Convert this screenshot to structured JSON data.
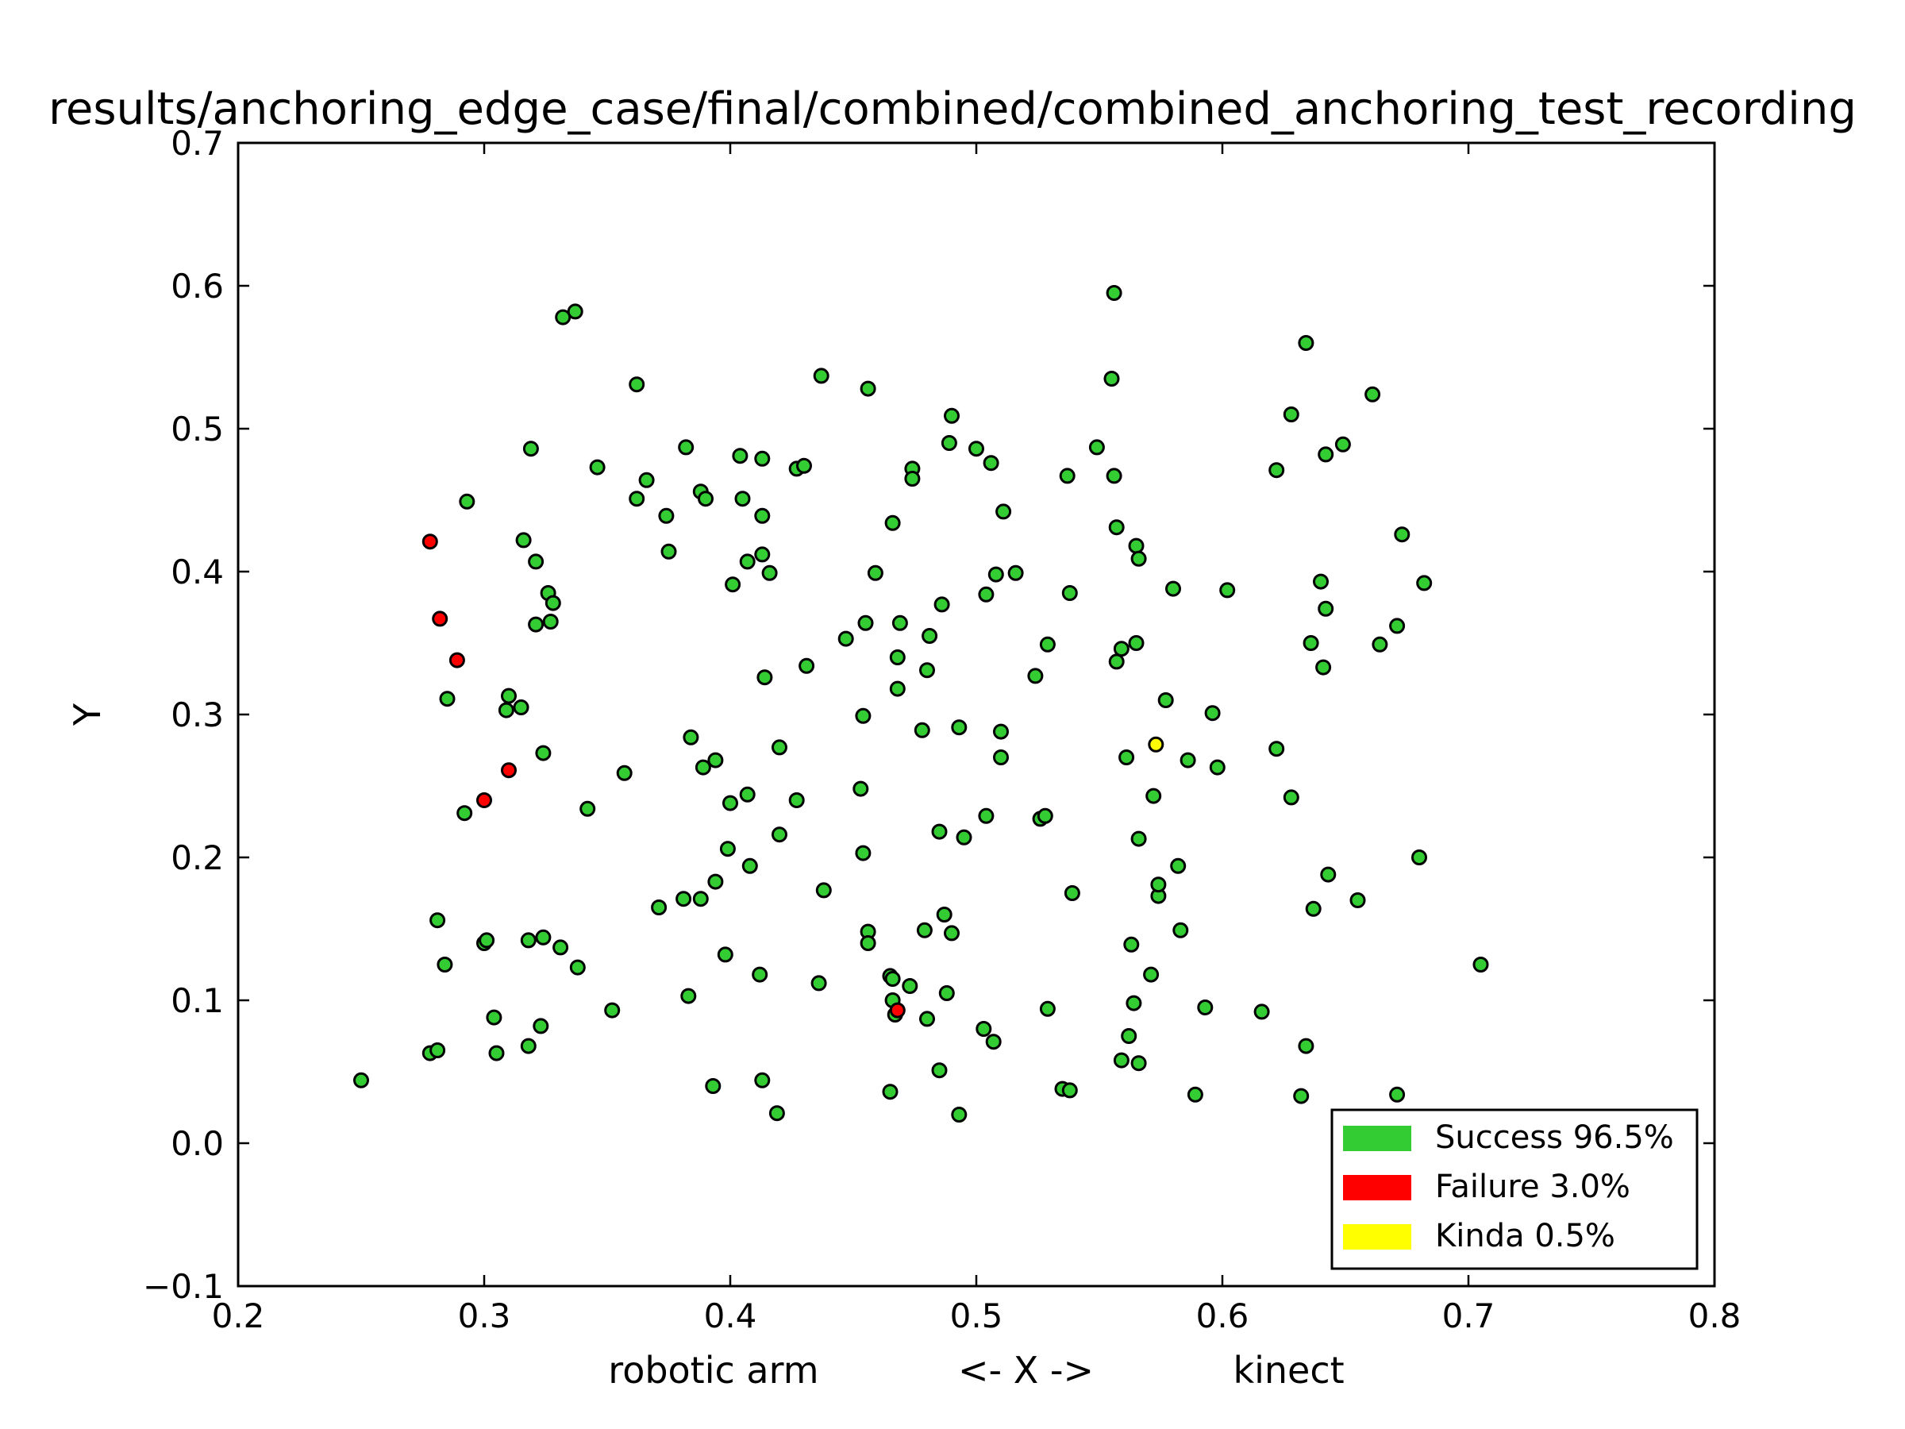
{
  "chart_data": {
    "type": "scatter",
    "title": "results/anchoring_edge_case/final/combined/combined_anchoring_test_recording",
    "xlabel": "robotic arm            <- X ->            kinect",
    "ylabel": "Y",
    "xlim": [
      0.2,
      0.8
    ],
    "ylim": [
      -0.1,
      0.7
    ],
    "x_ticks": [
      "0.2",
      "0.3",
      "0.4",
      "0.5",
      "0.6",
      "0.7",
      "0.8"
    ],
    "y_ticks": [
      "−0.1",
      "0.0",
      "0.1",
      "0.2",
      "0.3",
      "0.4",
      "0.5",
      "0.6",
      "0.7"
    ],
    "grid": false,
    "legend_position": "lower-right",
    "series": [
      {
        "name": "Success 96.5%",
        "color": "#33cc33",
        "points": [
          [
            0.25,
            0.044
          ],
          [
            0.278,
            0.063
          ],
          [
            0.281,
            0.065
          ],
          [
            0.284,
            0.125
          ],
          [
            0.281,
            0.156
          ],
          [
            0.285,
            0.311
          ],
          [
            0.292,
            0.231
          ],
          [
            0.293,
            0.449
          ],
          [
            0.3,
            0.14
          ],
          [
            0.301,
            0.142
          ],
          [
            0.304,
            0.088
          ],
          [
            0.305,
            0.063
          ],
          [
            0.309,
            0.303
          ],
          [
            0.31,
            0.313
          ],
          [
            0.315,
            0.305
          ],
          [
            0.316,
            0.422
          ],
          [
            0.318,
            0.068
          ],
          [
            0.318,
            0.142
          ],
          [
            0.319,
            0.486
          ],
          [
            0.321,
            0.363
          ],
          [
            0.321,
            0.407
          ],
          [
            0.323,
            0.082
          ],
          [
            0.324,
            0.273
          ],
          [
            0.324,
            0.144
          ],
          [
            0.326,
            0.385
          ],
          [
            0.327,
            0.365
          ],
          [
            0.328,
            0.378
          ],
          [
            0.331,
            0.137
          ],
          [
            0.332,
            0.578
          ],
          [
            0.337,
            0.582
          ],
          [
            0.338,
            0.123
          ],
          [
            0.342,
            0.234
          ],
          [
            0.346,
            0.473
          ],
          [
            0.352,
            0.093
          ],
          [
            0.357,
            0.259
          ],
          [
            0.362,
            0.451
          ],
          [
            0.362,
            0.531
          ],
          [
            0.366,
            0.464
          ],
          [
            0.371,
            0.165
          ],
          [
            0.374,
            0.439
          ],
          [
            0.375,
            0.414
          ],
          [
            0.381,
            0.171
          ],
          [
            0.382,
            0.487
          ],
          [
            0.383,
            0.103
          ],
          [
            0.384,
            0.284
          ],
          [
            0.388,
            0.171
          ],
          [
            0.388,
            0.456
          ],
          [
            0.389,
            0.263
          ],
          [
            0.39,
            0.451
          ],
          [
            0.393,
            0.04
          ],
          [
            0.394,
            0.183
          ],
          [
            0.394,
            0.268
          ],
          [
            0.398,
            0.132
          ],
          [
            0.399,
            0.206
          ],
          [
            0.4,
            0.238
          ],
          [
            0.401,
            0.391
          ],
          [
            0.404,
            0.481
          ],
          [
            0.405,
            0.451
          ],
          [
            0.407,
            0.244
          ],
          [
            0.407,
            0.407
          ],
          [
            0.408,
            0.194
          ],
          [
            0.412,
            0.118
          ],
          [
            0.413,
            0.044
          ],
          [
            0.413,
            0.479
          ],
          [
            0.413,
            0.412
          ],
          [
            0.413,
            0.439
          ],
          [
            0.414,
            0.326
          ],
          [
            0.416,
            0.399
          ],
          [
            0.419,
            0.021
          ],
          [
            0.42,
            0.216
          ],
          [
            0.42,
            0.277
          ],
          [
            0.427,
            0.24
          ],
          [
            0.427,
            0.472
          ],
          [
            0.43,
            0.474
          ],
          [
            0.431,
            0.334
          ],
          [
            0.436,
            0.112
          ],
          [
            0.437,
            0.537
          ],
          [
            0.438,
            0.177
          ],
          [
            0.447,
            0.353
          ],
          [
            0.453,
            0.248
          ],
          [
            0.454,
            0.203
          ],
          [
            0.454,
            0.299
          ],
          [
            0.455,
            0.364
          ],
          [
            0.456,
            0.528
          ],
          [
            0.456,
            0.148
          ],
          [
            0.456,
            0.14
          ],
          [
            0.459,
            0.399
          ],
          [
            0.465,
            0.036
          ],
          [
            0.465,
            0.117
          ],
          [
            0.466,
            0.1
          ],
          [
            0.466,
            0.434
          ],
          [
            0.466,
            0.115
          ],
          [
            0.467,
            0.09
          ],
          [
            0.468,
            0.318
          ],
          [
            0.468,
            0.34
          ],
          [
            0.469,
            0.364
          ],
          [
            0.473,
            0.11
          ],
          [
            0.474,
            0.472
          ],
          [
            0.474,
            0.465
          ],
          [
            0.478,
            0.289
          ],
          [
            0.479,
            0.149
          ],
          [
            0.48,
            0.087
          ],
          [
            0.48,
            0.331
          ],
          [
            0.481,
            0.355
          ],
          [
            0.485,
            0.051
          ],
          [
            0.485,
            0.218
          ],
          [
            0.486,
            0.377
          ],
          [
            0.487,
            0.16
          ],
          [
            0.488,
            0.105
          ],
          [
            0.489,
            0.49
          ],
          [
            0.49,
            0.147
          ],
          [
            0.49,
            0.509
          ],
          [
            0.493,
            0.02
          ],
          [
            0.493,
            0.291
          ],
          [
            0.495,
            0.214
          ],
          [
            0.5,
            0.486
          ],
          [
            0.503,
            0.08
          ],
          [
            0.504,
            0.229
          ],
          [
            0.504,
            0.384
          ],
          [
            0.506,
            0.476
          ],
          [
            0.507,
            0.071
          ],
          [
            0.508,
            0.398
          ],
          [
            0.51,
            0.27
          ],
          [
            0.51,
            0.288
          ],
          [
            0.511,
            0.442
          ],
          [
            0.516,
            0.399
          ],
          [
            0.524,
            0.327
          ],
          [
            0.526,
            0.227
          ],
          [
            0.528,
            0.229
          ],
          [
            0.529,
            0.349
          ],
          [
            0.529,
            0.094
          ],
          [
            0.535,
            0.038
          ],
          [
            0.537,
            0.467
          ],
          [
            0.538,
            0.037
          ],
          [
            0.538,
            0.385
          ],
          [
            0.539,
            0.175
          ],
          [
            0.549,
            0.487
          ],
          [
            0.555,
            0.535
          ],
          [
            0.556,
            0.595
          ],
          [
            0.556,
            0.467
          ],
          [
            0.557,
            0.337
          ],
          [
            0.557,
            0.431
          ],
          [
            0.559,
            0.058
          ],
          [
            0.559,
            0.346
          ],
          [
            0.561,
            0.27
          ],
          [
            0.562,
            0.075
          ],
          [
            0.563,
            0.139
          ],
          [
            0.564,
            0.098
          ],
          [
            0.565,
            0.35
          ],
          [
            0.565,
            0.418
          ],
          [
            0.566,
            0.213
          ],
          [
            0.566,
            0.056
          ],
          [
            0.566,
            0.409
          ],
          [
            0.571,
            0.118
          ],
          [
            0.572,
            0.243
          ],
          [
            0.574,
            0.173
          ],
          [
            0.574,
            0.181
          ],
          [
            0.577,
            0.31
          ],
          [
            0.58,
            0.388
          ],
          [
            0.582,
            0.194
          ],
          [
            0.583,
            0.149
          ],
          [
            0.586,
            0.268
          ],
          [
            0.589,
            0.034
          ],
          [
            0.593,
            0.095
          ],
          [
            0.596,
            0.301
          ],
          [
            0.598,
            0.263
          ],
          [
            0.602,
            0.387
          ],
          [
            0.616,
            0.092
          ],
          [
            0.622,
            0.276
          ],
          [
            0.622,
            0.471
          ],
          [
            0.628,
            0.242
          ],
          [
            0.628,
            0.51
          ],
          [
            0.632,
            0.033
          ],
          [
            0.634,
            0.56
          ],
          [
            0.634,
            0.068
          ],
          [
            0.636,
            0.35
          ],
          [
            0.637,
            0.164
          ],
          [
            0.64,
            0.393
          ],
          [
            0.641,
            0.333
          ],
          [
            0.642,
            0.482
          ],
          [
            0.642,
            0.374
          ],
          [
            0.643,
            0.188
          ],
          [
            0.649,
            0.489
          ],
          [
            0.655,
            0.17
          ],
          [
            0.661,
            0.524
          ],
          [
            0.664,
            0.349
          ],
          [
            0.671,
            0.034
          ],
          [
            0.671,
            0.362
          ],
          [
            0.673,
            0.426
          ],
          [
            0.68,
            0.2
          ],
          [
            0.682,
            0.392
          ],
          [
            0.705,
            0.125
          ]
        ]
      },
      {
        "name": "Failure 3.0%",
        "color": "#ff0000",
        "points": [
          [
            0.278,
            0.421
          ],
          [
            0.282,
            0.367
          ],
          [
            0.289,
            0.338
          ],
          [
            0.3,
            0.24
          ],
          [
            0.31,
            0.261
          ],
          [
            0.468,
            0.093
          ]
        ]
      },
      {
        "name": "Kinda 0.5%",
        "color": "#ffff00",
        "points": [
          [
            0.573,
            0.279
          ]
        ]
      }
    ]
  }
}
